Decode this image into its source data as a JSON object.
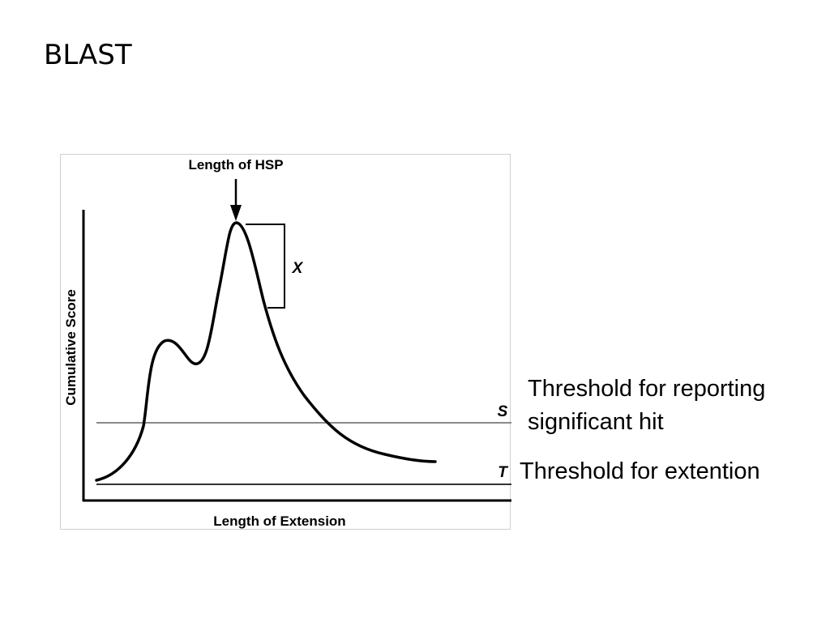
{
  "slide": {
    "title": "BLAST"
  },
  "diagram": {
    "hsp_label": "Length of HSP",
    "y_axis_label": "Cumulative Score",
    "x_axis_label": "Length of Extension",
    "x_drop_label": "X",
    "s_line_label": "S",
    "t_line_label": "T",
    "curve_color": "#000000",
    "threshold_line_color": "#8a8a8a"
  },
  "notes": {
    "s_line1": "Threshold for reporting",
    "s_line2": "significant hit",
    "t_text": "Threshold for extention"
  }
}
